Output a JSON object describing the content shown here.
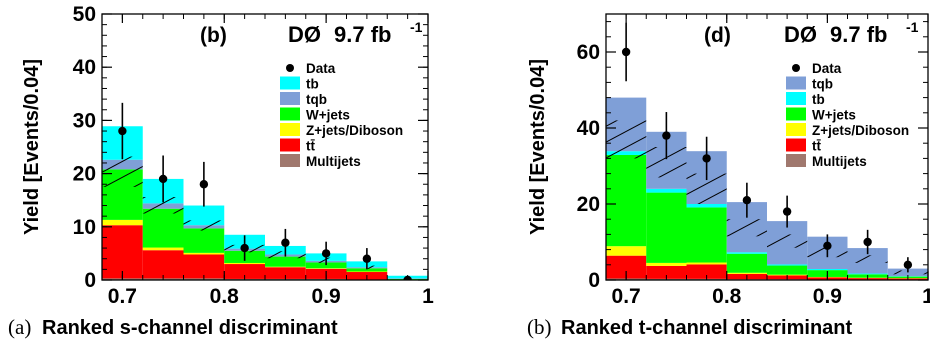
{
  "chart_data": [
    {
      "type": "bar",
      "panel_label": "(b)",
      "experiment": "DØ",
      "luminosity": "9.7 fb",
      "luminosity_exp": "-1",
      "ylabel": "Yield [Events/0.04]",
      "caption_prefix": "(a)",
      "caption": "Ranked s-channel discriminant",
      "xlim": [
        0.68,
        1.0
      ],
      "ylim": [
        0,
        50
      ],
      "xticks": [
        0.7,
        0.8,
        0.9,
        1.0
      ],
      "xtick_labels": [
        "0.7",
        "0.8",
        "0.9",
        "1"
      ],
      "yticks": [
        0,
        10,
        20,
        30,
        40,
        50
      ],
      "ytick_labels": [
        "0",
        "10",
        "20",
        "30",
        "40",
        "50"
      ],
      "bin_edges": [
        0.68,
        0.72,
        0.76,
        0.8,
        0.84,
        0.88,
        0.92,
        0.96,
        1.0
      ],
      "stack": [
        {
          "name": "Multijets",
          "color": "#a0786e",
          "values": [
            0.3,
            0.3,
            0.3,
            0.2,
            0.2,
            0.2,
            0.1,
            0.0
          ]
        },
        {
          "name": "tt̄",
          "color": "#ff0000",
          "values": [
            10.0,
            5.3,
            4.5,
            2.8,
            2.2,
            1.9,
            1.4,
            0.1
          ]
        },
        {
          "name": "Z+jets/Diboson",
          "color": "#ffff00",
          "values": [
            1.0,
            0.5,
            0.3,
            0.2,
            0.1,
            0.1,
            0.1,
            0.0
          ]
        },
        {
          "name": "W+jets",
          "color": "#00ff00",
          "values": [
            9.5,
            7.3,
            4.6,
            2.3,
            1.9,
            1.1,
            0.6,
            0.1
          ]
        },
        {
          "name": "tqb",
          "color": "#7f9fd7",
          "values": [
            1.8,
            1.0,
            0.6,
            0.4,
            0.4,
            0.3,
            0.2,
            0.1
          ]
        },
        {
          "name": "tb",
          "color": "#00ffff",
          "values": [
            6.3,
            4.6,
            3.7,
            2.6,
            1.6,
            1.4,
            1.1,
            0.5
          ]
        }
      ],
      "uncertainty_band": {
        "low": [
          17.5,
          12.5,
          9.3,
          5.2,
          4.1,
          3.2,
          2.1,
          0.2
        ],
        "high": [
          23.2,
          15.6,
          11.2,
          6.6,
          5.4,
          4.2,
          2.7,
          0.4
        ]
      },
      "data": {
        "x": [
          0.7,
          0.74,
          0.78,
          0.82,
          0.86,
          0.9,
          0.94,
          0.98
        ],
        "y": [
          28,
          19,
          18,
          6,
          7,
          5,
          4,
          0
        ],
        "err": [
          5.3,
          4.4,
          4.2,
          2.4,
          2.6,
          2.2,
          2.0,
          0.0
        ]
      },
      "legend": [
        {
          "name": "Data",
          "kind": "marker"
        },
        {
          "name": "tb",
          "color": "#00ffff"
        },
        {
          "name": "tqb",
          "color": "#7f9fd7"
        },
        {
          "name": "W+jets",
          "color": "#00ff00"
        },
        {
          "name": "Z+jets/Diboson",
          "color": "#ffff00"
        },
        {
          "name": "tt̄",
          "color": "#ff0000"
        },
        {
          "name": "Multijets",
          "color": "#a0786e"
        }
      ]
    },
    {
      "type": "bar",
      "panel_label": "(d)",
      "experiment": "DØ",
      "luminosity": "9.7 fb",
      "luminosity_exp": "-1",
      "ylabel": "Yield [Events/0.04]",
      "caption_prefix": "(b)",
      "caption": "Ranked t-channel discriminant",
      "xlim": [
        0.68,
        1.0
      ],
      "ylim": [
        0,
        70
      ],
      "xticks": [
        0.7,
        0.8,
        0.9,
        1.0
      ],
      "xtick_labels": [
        "0.7",
        "0.8",
        "0.9",
        "1"
      ],
      "yticks": [
        0,
        20,
        40,
        60
      ],
      "ytick_labels": [
        "0",
        "20",
        "40",
        "60"
      ],
      "bin_edges": [
        0.68,
        0.72,
        0.76,
        0.8,
        0.84,
        0.88,
        0.92,
        0.96,
        1.0
      ],
      "stack": [
        {
          "name": "Multijets",
          "color": "#a0786e",
          "values": [
            0.4,
            0.3,
            0.3,
            0.2,
            0.2,
            0.1,
            0.1,
            0.1
          ]
        },
        {
          "name": "tt̄",
          "color": "#ff0000",
          "values": [
            6.0,
            3.4,
            3.8,
            1.4,
            1.0,
            0.6,
            0.4,
            0.3
          ]
        },
        {
          "name": "Z+jets/Diboson",
          "color": "#ffff00",
          "values": [
            2.5,
            0.8,
            0.5,
            0.3,
            0.2,
            0.1,
            0.1,
            0.1
          ]
        },
        {
          "name": "W+jets",
          "color": "#00ff00",
          "values": [
            24.0,
            18.5,
            14.5,
            5.0,
            2.4,
            1.8,
            0.9,
            0.4
          ]
        },
        {
          "name": "tb",
          "color": "#00ffff",
          "values": [
            1.0,
            1.0,
            0.9,
            0.4,
            0.3,
            0.3,
            0.2,
            0.1
          ]
        },
        {
          "name": "tqb",
          "color": "#7f9fd7",
          "values": [
            14.1,
            15.0,
            13.9,
            13.2,
            11.4,
            8.5,
            6.7,
            2.0
          ]
        }
      ],
      "uncertainty_band": {
        "low": [
          32.0,
          27.0,
          20.0,
          11.5,
          8.5,
          6.0,
          4.5,
          1.5
        ],
        "high": [
          42.0,
          35.0,
          28.0,
          16.0,
          12.0,
          8.5,
          6.5,
          2.5
        ]
      },
      "data": {
        "x": [
          0.7,
          0.74,
          0.78,
          0.82,
          0.86,
          0.9,
          0.94,
          0.98
        ],
        "y": [
          60,
          38,
          32,
          21,
          18,
          9,
          10,
          4
        ],
        "err": [
          7.7,
          6.2,
          5.7,
          4.6,
          4.2,
          3.0,
          3.2,
          2.0
        ]
      },
      "legend": [
        {
          "name": "Data",
          "kind": "marker"
        },
        {
          "name": "tqb",
          "color": "#7f9fd7"
        },
        {
          "name": "tb",
          "color": "#00ffff"
        },
        {
          "name": "W+jets",
          "color": "#00ff00"
        },
        {
          "name": "Z+jets/Diboson",
          "color": "#ffff00"
        },
        {
          "name": "tt̄",
          "color": "#ff0000"
        },
        {
          "name": "Multijets",
          "color": "#a0786e"
        }
      ]
    }
  ]
}
